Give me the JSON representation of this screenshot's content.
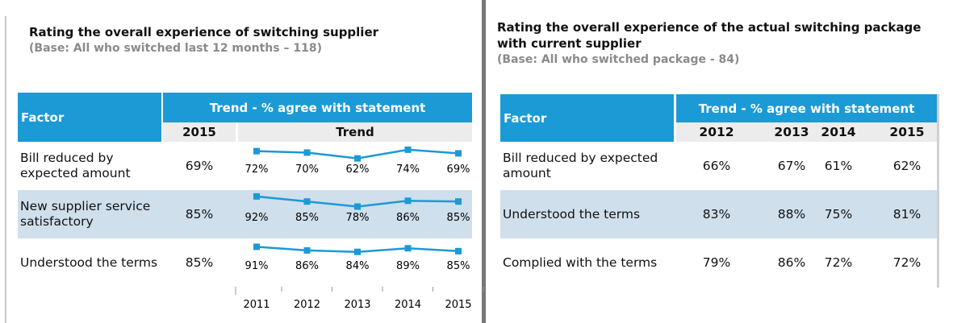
{
  "left": {
    "title": "Rating the overall experience of switching supplier",
    "base": "(Base: All who switched last 12 months – 118)",
    "table": {
      "header": {
        "factor": "Factor",
        "trend_title": "Trend - % agree with statement",
        "current_col": "2015",
        "trend_col": "Trend"
      },
      "rows": [
        {
          "factor": "Bill reduced by expected amount",
          "current": "69%",
          "trend": {
            "values": [
              72,
              70,
              62,
              74,
              69
            ],
            "value_labels": [
              "72%",
              "70%",
              "62%",
              "74%",
              "69%"
            ]
          }
        },
        {
          "factor": "New supplier service satisfactory",
          "current": "85%",
          "trend": {
            "values": [
              92,
              85,
              78,
              86,
              85
            ],
            "value_labels": [
              "92%",
              "85%",
              "78%",
              "86%",
              "85%"
            ]
          }
        },
        {
          "factor": "Understood the terms",
          "current": "85%",
          "trend": {
            "values": [
              91,
              86,
              84,
              89,
              85
            ],
            "value_labels": [
              "91%",
              "86%",
              "84%",
              "89%",
              "85%"
            ]
          }
        }
      ],
      "years": [
        "2011",
        "2012",
        "2013",
        "2014",
        "2015"
      ]
    }
  },
  "right": {
    "title": "Rating the overall experience of the actual switching package with current supplier",
    "base": "(Base: All who switched package - 84)",
    "table": {
      "header": {
        "factor": "Factor",
        "trend_title": "Trend - % agree with statement",
        "years": [
          "2012",
          "2013",
          "2014",
          "2015"
        ]
      },
      "rows": [
        {
          "factor": "Bill reduced by expected amount",
          "cells": [
            "66%",
            "67%",
            "61%",
            "62%"
          ]
        },
        {
          "factor": "Understood the terms",
          "cells": [
            "83%",
            "88%",
            "75%",
            "81%"
          ]
        },
        {
          "factor": "Complied with the terms",
          "cells": [
            "79%",
            "86%",
            "72%",
            "72%"
          ]
        }
      ]
    }
  }
}
